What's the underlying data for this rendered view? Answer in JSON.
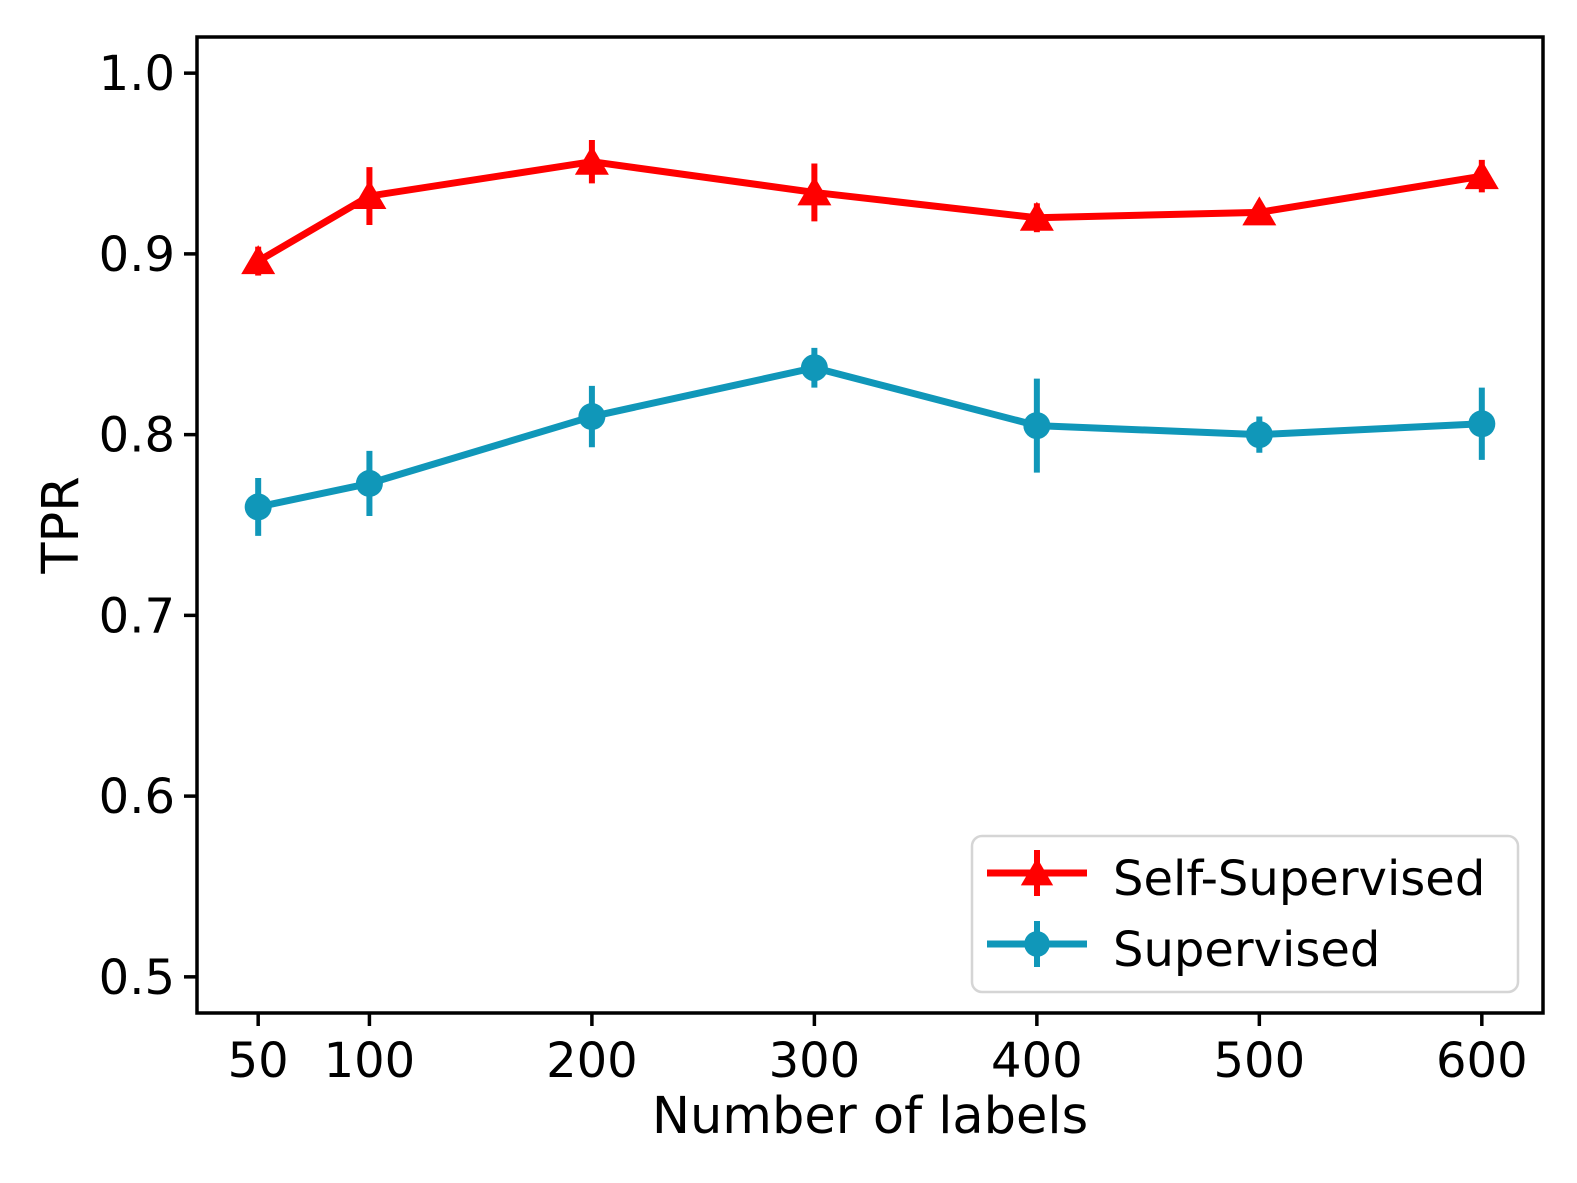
{
  "chart_data": {
    "type": "line",
    "title": "",
    "xlabel": "Number of labels",
    "ylabel": "TPR",
    "x": [
      50,
      100,
      200,
      300,
      400,
      500,
      600
    ],
    "x_tick_labels": [
      "50",
      "100",
      "200",
      "300",
      "400",
      "500",
      "600"
    ],
    "y_ticks": [
      0.5,
      0.6,
      0.7,
      0.8,
      0.9,
      1.0
    ],
    "y_tick_labels": [
      "0.5",
      "0.6",
      "0.7",
      "0.8",
      "0.9",
      "1.0"
    ],
    "xlim": [
      22.5,
      627.5
    ],
    "ylim": [
      0.48,
      1.02
    ],
    "grid": false,
    "legend_position": "lower right",
    "error_bars": true,
    "series": [
      {
        "name": "Self-Supervised",
        "color": "#ff0000",
        "marker": "triangle",
        "values": [
          0.896,
          0.932,
          0.951,
          0.934,
          0.92,
          0.923,
          0.943
        ],
        "errors": [
          0.008,
          0.016,
          0.012,
          0.016,
          0.008,
          0.006,
          0.009
        ]
      },
      {
        "name": "Supervised",
        "color": "#1097b9",
        "marker": "circle",
        "values": [
          0.76,
          0.773,
          0.81,
          0.837,
          0.805,
          0.8,
          0.806
        ],
        "errors": [
          0.016,
          0.018,
          0.017,
          0.011,
          0.026,
          0.01,
          0.02
        ]
      }
    ],
    "colors": {
      "axes": "#000000",
      "background": "#ffffff",
      "legend_border": "#d5d5d5",
      "legend_background": "#ffffff"
    }
  }
}
